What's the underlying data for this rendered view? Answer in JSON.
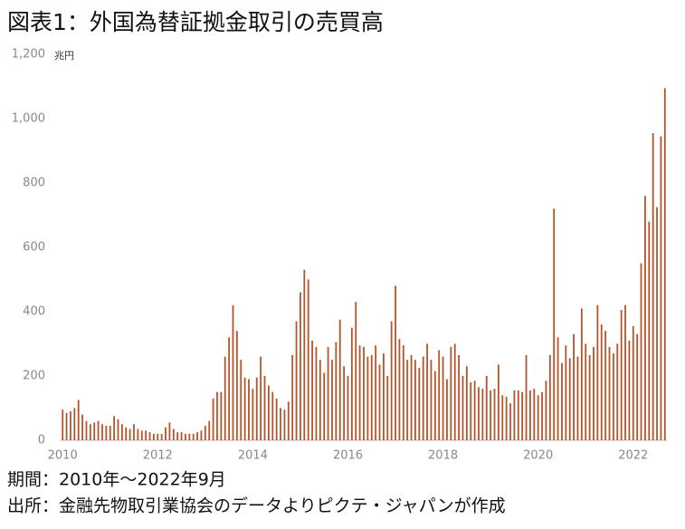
{
  "chart_data": {
    "type": "bar",
    "title": "図表1：外国為替証拠金取引の売買高",
    "ylabel": "兆円",
    "notes": [
      "期間：2010年～2022年9月",
      "出所：金融先物取引業協会のデータよりピクテ・ジャパンが作成"
    ],
    "categories": [
      "2010",
      null,
      null,
      null,
      null,
      null,
      null,
      null,
      null,
      null,
      null,
      null,
      null,
      null,
      null,
      null,
      null,
      null,
      null,
      null,
      null,
      null,
      null,
      null,
      "2012",
      null,
      null,
      null,
      null,
      null,
      null,
      null,
      null,
      null,
      null,
      null,
      null,
      null,
      null,
      null,
      null,
      null,
      null,
      null,
      null,
      null,
      null,
      null,
      "2014",
      null,
      null,
      null,
      null,
      null,
      null,
      null,
      null,
      null,
      null,
      null,
      null,
      null,
      null,
      null,
      null,
      null,
      null,
      null,
      null,
      null,
      null,
      null,
      "2016",
      null,
      null,
      null,
      null,
      null,
      null,
      null,
      null,
      null,
      null,
      null,
      null,
      null,
      null,
      null,
      null,
      null,
      null,
      null,
      null,
      null,
      null,
      null,
      "2018",
      null,
      null,
      null,
      null,
      null,
      null,
      null,
      null,
      null,
      null,
      null,
      null,
      null,
      null,
      null,
      null,
      null,
      null,
      null,
      null,
      null,
      null,
      null,
      "2020",
      null,
      null,
      null,
      null,
      null,
      null,
      null,
      null,
      null,
      null,
      null,
      null,
      null,
      null,
      null,
      null,
      null,
      null,
      null,
      null,
      null,
      null,
      null,
      "2022",
      null,
      null,
      null,
      null,
      null,
      null,
      null,
      null
    ],
    "values": [
      95,
      85,
      90,
      100,
      125,
      80,
      60,
      50,
      55,
      60,
      50,
      45,
      45,
      75,
      65,
      50,
      40,
      35,
      50,
      35,
      30,
      30,
      25,
      20,
      20,
      20,
      40,
      55,
      35,
      25,
      25,
      20,
      20,
      20,
      25,
      30,
      45,
      60,
      130,
      150,
      150,
      260,
      320,
      420,
      340,
      250,
      195,
      190,
      160,
      195,
      260,
      200,
      170,
      150,
      130,
      100,
      95,
      120,
      265,
      370,
      460,
      530,
      500,
      310,
      290,
      250,
      210,
      290,
      250,
      305,
      375,
      230,
      200,
      350,
      430,
      295,
      290,
      260,
      265,
      295,
      235,
      270,
      200,
      370,
      480,
      315,
      295,
      250,
      265,
      250,
      225,
      260,
      300,
      250,
      215,
      280,
      260,
      190,
      290,
      300,
      265,
      200,
      230,
      180,
      185,
      165,
      160,
      200,
      155,
      160,
      235,
      140,
      135,
      115,
      155,
      155,
      150,
      265,
      155,
      160,
      140,
      150,
      185,
      265,
      720,
      320,
      240,
      295,
      255,
      330,
      260,
      410,
      300,
      265,
      290,
      420,
      360,
      340,
      290,
      270,
      300,
      405,
      420,
      310,
      355,
      330,
      550,
      760,
      680,
      955,
      725,
      945,
      1095
    ],
    "color": "#b5532a",
    "ylim": [
      0,
      1200
    ],
    "yticks": [
      0,
      200,
      400,
      600,
      800,
      {
        "value": 1000,
        "label": "1,000"
      },
      {
        "value": 1200,
        "label": "1,200"
      }
    ],
    "grid": false
  }
}
